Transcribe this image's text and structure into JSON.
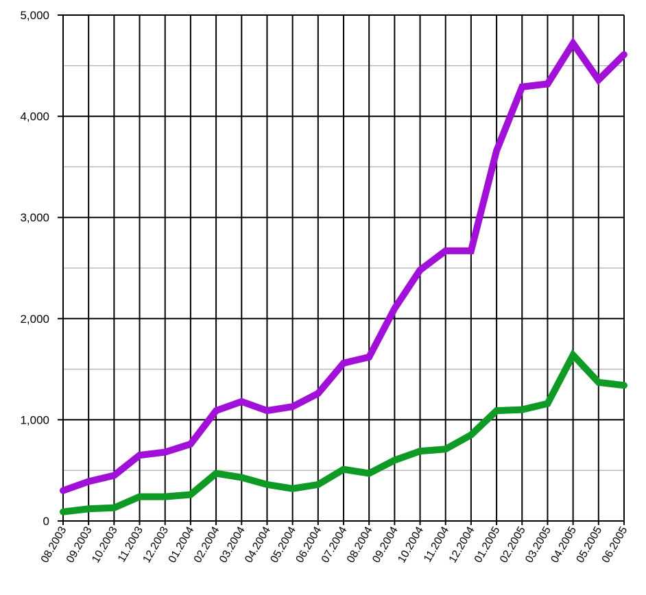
{
  "chart_data": {
    "type": "line",
    "title": "",
    "xlabel": "",
    "ylabel": "",
    "categories": [
      "08.2003",
      "09.2003",
      "10.2003",
      "11.2003",
      "12.2003",
      "01.2004",
      "02.2004",
      "03.2004",
      "04.2004",
      "05.2004",
      "06.2004",
      "07.2004",
      "08.2004",
      "09.2004",
      "10.2004",
      "11.2004",
      "12.2004",
      "01.2005",
      "02.2005",
      "03.2005",
      "04.2005",
      "05.2005",
      "06.2005"
    ],
    "yticks": [
      0,
      1000,
      2000,
      3000,
      4000,
      5000
    ],
    "ytick_labels": [
      "0",
      "1,000",
      "2,000",
      "3,000",
      "4,000",
      "5,000"
    ],
    "ylim": [
      0,
      5000
    ],
    "grid": "on",
    "series": [
      {
        "color": "#A010D6",
        "values": [
          300,
          390,
          450,
          650,
          680,
          760,
          1090,
          1180,
          1090,
          1130,
          1260,
          1560,
          1620,
          2100,
          2480,
          2670,
          2670,
          3660,
          4290,
          4320,
          4720,
          4360,
          4610
        ]
      },
      {
        "color": "#0E9A24",
        "values": [
          90,
          120,
          130,
          240,
          240,
          260,
          470,
          430,
          360,
          320,
          360,
          510,
          470,
          600,
          690,
          710,
          850,
          1090,
          1100,
          1160,
          1640,
          1370,
          1340
        ]
      }
    ],
    "gridline_color": "#000000",
    "minor_gridline_color": "#bbbbbb"
  }
}
